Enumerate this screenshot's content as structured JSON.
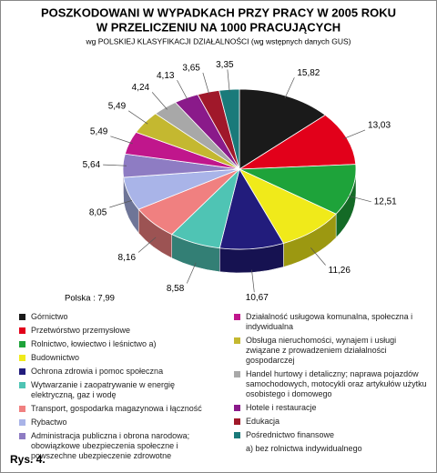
{
  "chart_data": {
    "type": "pie",
    "title": [
      "POSZKODOWANI  W   WYPADKACH  PRZY PRACY  W 2005 ROKU",
      "W PRZELICZENIU NA 1000 PRACUJĄCYCH"
    ],
    "subtitle": "wg  POLSKIEJ KLASYFIKACJI DZIAŁALNOŚCI  (wg wstępnych danych GUS)",
    "annotation": "Polska : 7,99",
    "footnote": "a) bez rolnictwa indywidualnego",
    "figure_label": "Rys. 4.",
    "categories": [
      "Górnictwo",
      "Przetwórstwo przemysłowe",
      "Rolnictwo, łowiectwo i leśnictwo a)",
      "Budownictwo",
      "Ochrona zdrowia i pomoc społeczna",
      "Wytwarzanie i zaopatrywanie w energię elektryczną, gaz i wodę",
      "Transport, gospodarka magazynowa i łączność",
      "Rybactwo",
      "Administracja publiczna i obrona narodowa; obowiązkowe ubezpieczenia społeczne i powszechne ubezpieczenie zdrowotne",
      "Działalność usługowa komunalna, społeczna i indywidualna",
      "Obsługa nieruchomości, wynajem i usługi związane z prowadzeniem działalności gospodarczej",
      "Handel hurtowy i detaliczny; naprawa pojazdów samochodowych, motocykli oraz artykułów użytku osobistego i domowego",
      "Hotele i restauracje",
      "Edukacja",
      "Pośrednictwo finansowe"
    ],
    "values": [
      15.82,
      13.03,
      12.51,
      11.26,
      10.67,
      8.58,
      8.16,
      8.05,
      5.64,
      5.49,
      5.49,
      4.24,
      4.13,
      3.65,
      3.35
    ],
    "value_labels": [
      "15,82",
      "13,03",
      "12,51",
      "11,26",
      "10,67",
      "8,58",
      "8,16",
      "8,05",
      "5,64",
      "5,49",
      "5,49",
      "4,24",
      "4,13",
      "3,65",
      "3,35"
    ],
    "colors": [
      "#1a1a1a",
      "#e2001a",
      "#1ea33a",
      "#f0ea1a",
      "#221c7c",
      "#4fc4b4",
      "#f08080",
      "#a9b4e8",
      "#8e7cc3",
      "#c0168c",
      "#c4b830",
      "#a8a8a8",
      "#8a1a8a",
      "#a0182a",
      "#1a7a7a"
    ]
  }
}
